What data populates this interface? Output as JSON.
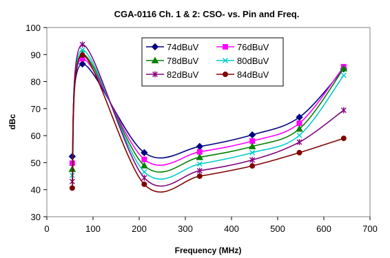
{
  "chart_data": {
    "type": "line",
    "title": "CGA-0116 Ch. 1 & 2: CSO- vs. Pin and Freq.",
    "xlabel": "Frequency (MHz)",
    "ylabel": "dBc",
    "xlim": [
      0,
      700
    ],
    "ylim": [
      30,
      100
    ],
    "xticks": [
      0,
      100,
      200,
      300,
      400,
      500,
      600,
      700
    ],
    "yticks": [
      30,
      40,
      50,
      60,
      70,
      80,
      90,
      100
    ],
    "grid": false,
    "legend_position": "top-center",
    "x": [
      55,
      77,
      211,
      331,
      445,
      547,
      643
    ],
    "series": [
      {
        "name": "74dBuV",
        "color": "#000080",
        "marker": "diamond",
        "values": [
          52.3,
          86.5,
          53.7,
          56.0,
          60.3,
          66.8,
          84.7
        ]
      },
      {
        "name": "76dBuV",
        "color": "#ff00ff",
        "marker": "square",
        "values": [
          49.8,
          88.5,
          51.2,
          54.0,
          58.0,
          64.6,
          85.5
        ]
      },
      {
        "name": "78dBuV",
        "color": "#008000",
        "marker": "triangle",
        "values": [
          47.6,
          90.2,
          48.9,
          52.0,
          56.0,
          62.5,
          84.8
        ]
      },
      {
        "name": "80dBuV",
        "color": "#00cccc",
        "marker": "x",
        "values": [
          45.3,
          91.7,
          46.6,
          49.5,
          53.7,
          60.1,
          82.3
        ]
      },
      {
        "name": "82dBuV",
        "color": "#800080",
        "marker": "star",
        "values": [
          43.0,
          93.7,
          44.4,
          47.0,
          51.0,
          57.6,
          69.4
        ]
      },
      {
        "name": "84dBuV",
        "color": "#800000",
        "marker": "circle",
        "values": [
          40.6,
          89.8,
          42.0,
          45.0,
          48.8,
          53.7,
          59.0
        ]
      }
    ]
  }
}
